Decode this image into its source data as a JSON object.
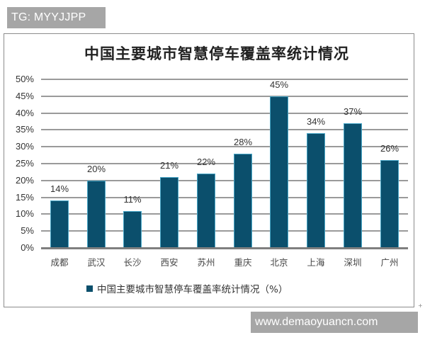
{
  "watermarks": {
    "top": "TG: MYYJJPP",
    "bottom": "www.demaoyuancn.com"
  },
  "colors": {
    "bar": "#0b4f6c",
    "grid": "#9a9a9a",
    "watermark_bg": "#a6a6a6"
  },
  "chart_data": {
    "type": "bar",
    "title": "中国主要城市智慧停车覆盖率统计情况",
    "xlabel": "",
    "ylabel": "",
    "categories": [
      "成都",
      "武汉",
      "长沙",
      "西安",
      "苏州",
      "重庆",
      "北京",
      "上海",
      "深圳",
      "广州"
    ],
    "series": [
      {
        "name": "中国主要城市智慧停车覆盖率统计情况（%）",
        "values": [
          14,
          20,
          11,
          21,
          22,
          28,
          45,
          34,
          37,
          26
        ]
      }
    ],
    "value_labels": [
      "14%",
      "20%",
      "11%",
      "21%",
      "22%",
      "28%",
      "45%",
      "34%",
      "37%",
      "26%"
    ],
    "y_ticks": [
      "0%",
      "5%",
      "10%",
      "15%",
      "20%",
      "25%",
      "30%",
      "35%",
      "40%",
      "45%",
      "50%"
    ],
    "ylim": [
      0,
      50
    ],
    "grid": true,
    "legend_position": "bottom"
  }
}
